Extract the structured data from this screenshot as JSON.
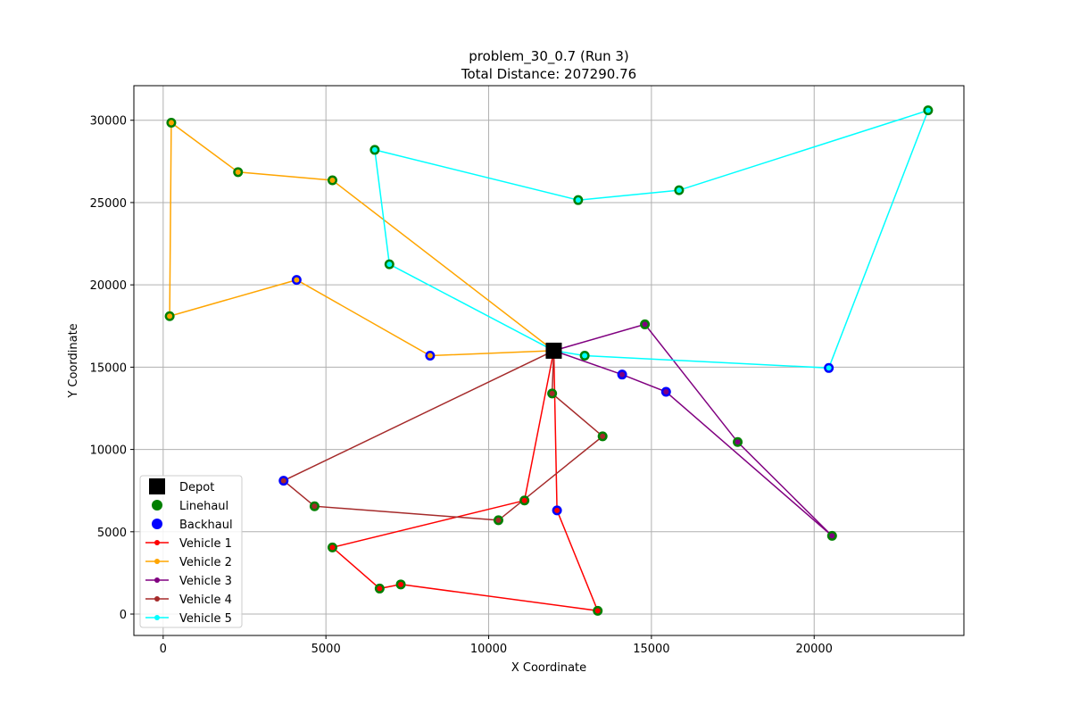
{
  "chart_data": {
    "type": "scatter",
    "title": "problem_30_0.7 (Run 3)",
    "subtitle": "Total Distance: 207290.76",
    "xlabel": "X Coordinate",
    "ylabel": "Y Coordinate",
    "xlim": [
      -900,
      24600
    ],
    "ylim": [
      -1300,
      32100
    ],
    "xticks": [
      0,
      5000,
      10000,
      15000,
      20000
    ],
    "yticks": [
      0,
      5000,
      10000,
      15000,
      20000,
      25000,
      30000
    ],
    "grid": true,
    "legend_position": "lower-left",
    "depot": {
      "name": "Depot",
      "x": 12000,
      "y": 16000,
      "color": "#000000"
    },
    "linehaul": {
      "name": "Linehaul",
      "color": "#008000",
      "points": [
        [
          250,
          29850
        ],
        [
          2300,
          26850
        ],
        [
          5200,
          26350
        ],
        [
          200,
          18100
        ],
        [
          6500,
          28200
        ],
        [
          6950,
          21250
        ],
        [
          12750,
          25150
        ],
        [
          15850,
          25750
        ],
        [
          23500,
          30600
        ],
        [
          12950,
          15700
        ],
        [
          14800,
          17600
        ],
        [
          17650,
          10450
        ],
        [
          20550,
          4750
        ],
        [
          11950,
          13400
        ],
        [
          13500,
          10800
        ],
        [
          11100,
          6900
        ],
        [
          10300,
          5700
        ],
        [
          4650,
          6550
        ],
        [
          5200,
          4050
        ],
        [
          6650,
          1550
        ],
        [
          7300,
          1800
        ],
        [
          13350,
          200
        ]
      ]
    },
    "backhaul": {
      "name": "Backhaul",
      "color": "#0000ff",
      "points": [
        [
          4100,
          20300
        ],
        [
          8200,
          15700
        ],
        [
          14100,
          14550
        ],
        [
          15450,
          13500
        ],
        [
          20450,
          14950
        ],
        [
          12100,
          6300
        ],
        [
          3700,
          8100
        ]
      ]
    },
    "series": [
      {
        "name": "Vehicle 1",
        "color": "#ff0000",
        "x": [
          12000,
          12100,
          13350,
          7300,
          6650,
          5200,
          11100,
          12000
        ],
        "y": [
          16000,
          6300,
          200,
          1800,
          1550,
          4050,
          6900,
          16000
        ]
      },
      {
        "name": "Vehicle 2",
        "color": "#ffa500",
        "x": [
          12000,
          5200,
          2300,
          250,
          200,
          4100,
          8200,
          12000
        ],
        "y": [
          16000,
          26350,
          26850,
          29850,
          18100,
          20300,
          15700,
          16000
        ]
      },
      {
        "name": "Vehicle 3",
        "color": "#800080",
        "x": [
          12000,
          14800,
          17650,
          20550,
          15450,
          14100,
          12000
        ],
        "y": [
          16000,
          17600,
          10450,
          4750,
          13500,
          14550,
          16000
        ]
      },
      {
        "name": "Vehicle 4",
        "color": "#a52a2a",
        "x": [
          12000,
          11950,
          13500,
          10300,
          4650,
          3700,
          12000
        ],
        "y": [
          16000,
          13400,
          10800,
          5700,
          6550,
          8100,
          16000
        ]
      },
      {
        "name": "Vehicle 5",
        "color": "#00ffff",
        "x": [
          12000,
          12950,
          20450,
          23500,
          15850,
          12750,
          6500,
          6950,
          12000
        ],
        "y": [
          16000,
          15700,
          14950,
          30600,
          25750,
          25150,
          28200,
          21250,
          16000
        ]
      }
    ]
  }
}
